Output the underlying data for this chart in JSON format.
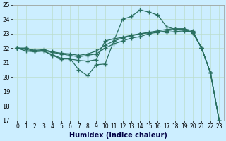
{
  "xlabel": "Humidex (Indice chaleur)",
  "bg_color": "#cceeff",
  "grid_color": "#bbddcc",
  "line_color": "#2a7060",
  "marker": "+",
  "markersize": 4,
  "linewidth": 0.9,
  "xlim": [
    -0.5,
    23.5
  ],
  "ylim": [
    17,
    25
  ],
  "xticks": [
    0,
    1,
    2,
    3,
    4,
    5,
    6,
    7,
    8,
    9,
    10,
    11,
    12,
    13,
    14,
    15,
    16,
    17,
    18,
    19,
    20,
    21,
    22,
    23
  ],
  "yticks": [
    17,
    18,
    19,
    20,
    21,
    22,
    23,
    24,
    25
  ],
  "lines": [
    {
      "x": [
        0,
        1,
        2,
        3,
        4,
        5,
        6,
        7,
        8,
        9,
        10,
        11,
        12,
        13,
        14,
        15,
        16,
        17,
        18,
        19,
        20,
        21,
        22,
        23
      ],
      "y": [
        22.0,
        22.0,
        21.8,
        21.85,
        21.7,
        21.6,
        21.5,
        21.4,
        21.5,
        21.6,
        22.0,
        22.3,
        22.5,
        22.7,
        22.8,
        23.0,
        23.1,
        23.2,
        23.3,
        23.3,
        23.1,
        22.0,
        20.3,
        17.0
      ]
    },
    {
      "x": [
        0,
        1,
        2,
        3,
        4,
        5,
        6,
        7,
        8,
        9,
        10,
        11,
        12,
        13,
        14,
        15,
        16,
        17,
        18,
        19,
        20,
        21,
        22,
        23
      ],
      "y": [
        22.0,
        22.0,
        21.85,
        21.9,
        21.75,
        21.65,
        21.6,
        21.5,
        21.6,
        21.8,
        22.2,
        22.5,
        22.7,
        22.85,
        23.0,
        23.1,
        23.2,
        23.3,
        23.35,
        23.35,
        23.2,
        22.0,
        20.3,
        17.0
      ]
    },
    {
      "x": [
        0,
        1,
        2,
        3,
        4,
        5,
        6,
        7,
        8,
        9,
        10,
        11,
        12,
        13,
        14,
        15,
        16,
        17,
        18,
        19,
        20,
        21,
        22,
        23
      ],
      "y": [
        22.0,
        21.8,
        21.75,
        21.8,
        21.55,
        21.3,
        21.3,
        20.5,
        20.1,
        20.85,
        20.9,
        22.5,
        24.0,
        24.2,
        24.65,
        24.5,
        24.3,
        23.5,
        23.3,
        23.3,
        23.05,
        22.0,
        20.3,
        17.0
      ]
    },
    {
      "x": [
        0,
        2,
        3,
        4,
        5,
        6,
        7,
        8,
        9,
        10,
        11,
        12,
        13,
        14,
        15,
        16,
        17,
        18,
        19,
        20,
        21,
        22,
        23
      ],
      "y": [
        22.0,
        21.8,
        21.8,
        21.5,
        21.25,
        21.25,
        21.15,
        21.1,
        21.2,
        22.5,
        22.65,
        22.75,
        22.9,
        23.0,
        23.05,
        23.15,
        23.1,
        23.15,
        23.2,
        23.1,
        22.0,
        20.3,
        17.0
      ]
    }
  ]
}
